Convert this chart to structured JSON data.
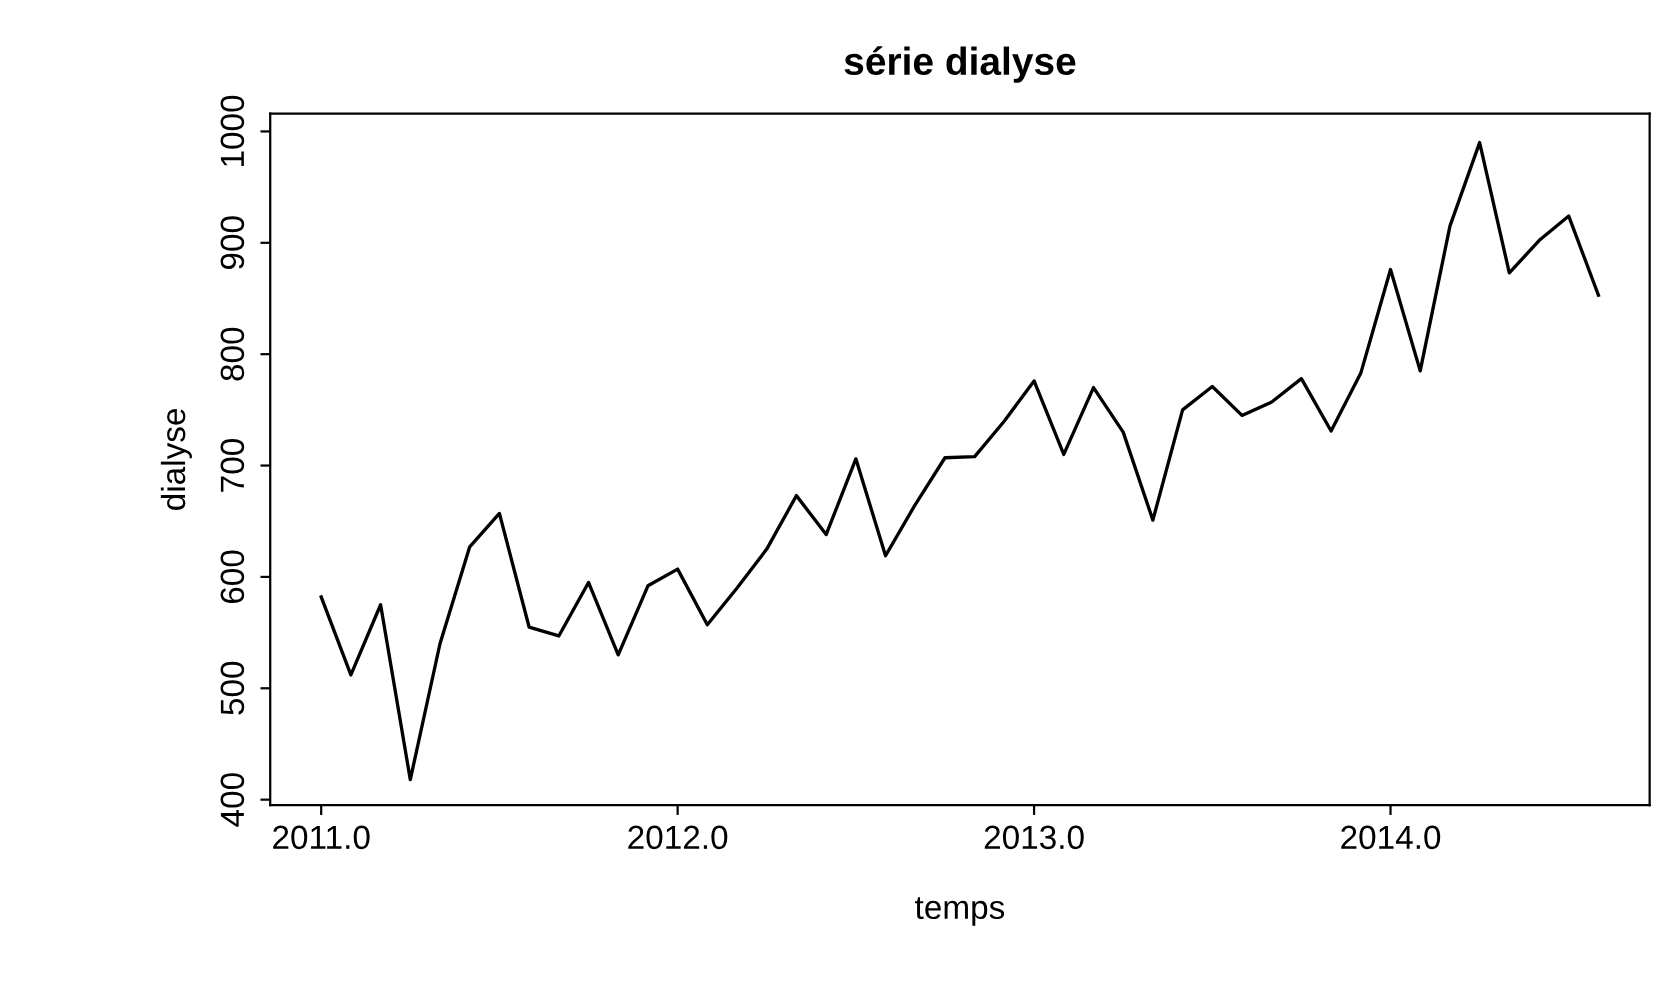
{
  "chart_data": {
    "type": "line",
    "title": "série dialyse",
    "xlabel": "temps",
    "ylabel": "dialyse",
    "x": [
      2011.0,
      2011.0833,
      2011.1667,
      2011.25,
      2011.3333,
      2011.4167,
      2011.5,
      2011.5833,
      2011.6667,
      2011.75,
      2011.8333,
      2011.9167,
      2012.0,
      2012.0833,
      2012.1667,
      2012.25,
      2012.3333,
      2012.4167,
      2012.5,
      2012.5833,
      2012.6667,
      2012.75,
      2012.8333,
      2012.9167,
      2013.0,
      2013.0833,
      2013.1667,
      2013.25,
      2013.3333,
      2013.4167,
      2013.5,
      2013.5833,
      2013.6667,
      2013.75,
      2013.8333,
      2013.9167,
      2014.0,
      2014.0833,
      2014.1667,
      2014.25,
      2014.3333,
      2014.4167,
      2014.5,
      2014.5833
    ],
    "series": [
      {
        "color": "#000000",
        "values": [
          582,
          512,
          575,
          418,
          540,
          627,
          657,
          555,
          547,
          595,
          530,
          592,
          607,
          557,
          590,
          625,
          673,
          638,
          706,
          619,
          665,
          707,
          708,
          740,
          776,
          710,
          770,
          730,
          651,
          750,
          771,
          745,
          757,
          778,
          731,
          783,
          876,
          785,
          915,
          990,
          873,
          902,
          924,
          853
        ]
      }
    ],
    "xlim": [
      2010.857,
      2014.727
    ],
    "ylim": [
      395,
      1016
    ],
    "xticks": [
      {
        "value": 2011,
        "label": "2011.0"
      },
      {
        "value": 2012,
        "label": "2012.0"
      },
      {
        "value": 2013,
        "label": "2013.0"
      },
      {
        "value": 2014,
        "label": "2014.0"
      }
    ],
    "yticks": [
      400,
      500,
      600,
      700,
      800,
      900,
      1000
    ],
    "marker": "none",
    "line_style": "solid"
  }
}
